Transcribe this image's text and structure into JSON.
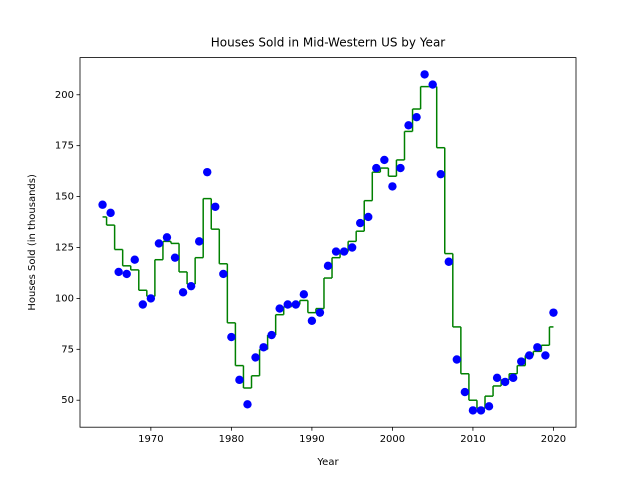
{
  "chart_data": {
    "type": "scatter",
    "title": "Houses Sold in Mid-Western US by Year",
    "xlabel": "Year",
    "ylabel": "Houses Sold (in thousands)",
    "x": [
      1964,
      1965,
      1966,
      1967,
      1968,
      1969,
      1970,
      1971,
      1972,
      1973,
      1974,
      1975,
      1976,
      1977,
      1978,
      1979,
      1980,
      1981,
      1982,
      1983,
      1984,
      1985,
      1986,
      1987,
      1988,
      1989,
      1990,
      1991,
      1992,
      1993,
      1994,
      1995,
      1996,
      1997,
      1998,
      1999,
      2000,
      2001,
      2002,
      2003,
      2004,
      2005,
      2006,
      2007,
      2008,
      2009,
      2010,
      2011,
      2012,
      2013,
      2014,
      2015,
      2016,
      2017,
      2018,
      2019,
      2020
    ],
    "series": [
      {
        "type": "step",
        "step": "mid",
        "color": "#008000",
        "values": [
          140,
          136,
          124,
          116,
          114,
          104,
          101,
          119,
          128,
          127,
          113,
          107,
          120,
          149,
          134,
          117,
          88,
          67,
          56,
          62,
          75,
          82,
          92,
          96,
          97,
          99,
          93,
          95,
          110,
          120,
          123,
          128,
          133,
          148,
          162,
          164,
          160,
          168,
          182,
          193,
          204,
          204,
          174,
          122,
          86,
          63,
          50,
          46,
          52,
          57,
          60,
          63,
          67,
          72,
          74,
          77,
          86
        ]
      },
      {
        "type": "scatter",
        "color": "#0000ff",
        "values": [
          146,
          142,
          113,
          112,
          119,
          97,
          100,
          127,
          130,
          120,
          103,
          106,
          128,
          162,
          145,
          112,
          81,
          60,
          48,
          71,
          76,
          82,
          95,
          97,
          97,
          102,
          89,
          93,
          116,
          123,
          123,
          125,
          137,
          140,
          164,
          168,
          155,
          164,
          185,
          189,
          210,
          205,
          161,
          118,
          70,
          54,
          45,
          45,
          47,
          61,
          59,
          61,
          69,
          72,
          76,
          72,
          93
        ]
      }
    ],
    "xlim": [
      1961.2,
      2022.8
    ],
    "xticks": [
      1970,
      1980,
      1990,
      2000,
      2010,
      2020
    ],
    "ylim": [
      36.75,
      218.25
    ],
    "yticks": [
      50,
      75,
      100,
      125,
      150,
      175,
      200
    ],
    "grid": false
  }
}
